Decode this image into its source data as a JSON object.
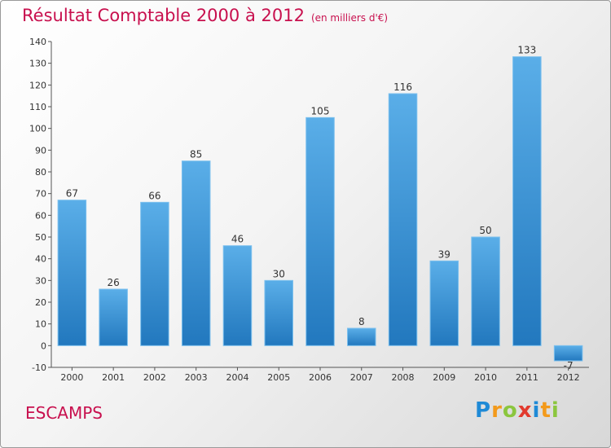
{
  "header": {
    "title": "Résultat Comptable 2000 à 2012",
    "subtitle": "(en milliers d'€)"
  },
  "footer": {
    "commune": "ESCAMPS",
    "logo_letters": [
      {
        "char": "P",
        "color": "#1f8ad6"
      },
      {
        "char": "r",
        "color": "#f39a1b"
      },
      {
        "char": "o",
        "color": "#8bc63e"
      },
      {
        "char": "x",
        "color": "#e23a2e"
      },
      {
        "char": "i",
        "color": "#1f8ad6"
      },
      {
        "char": "t",
        "color": "#f39a1b"
      },
      {
        "char": "i",
        "color": "#8bc63e"
      }
    ]
  },
  "chart_data": {
    "type": "bar",
    "title": "Résultat Comptable 2000 à 2012",
    "subtitle": "(en milliers d'€)",
    "categories": [
      "2000",
      "2001",
      "2002",
      "2003",
      "2004",
      "2005",
      "2006",
      "2007",
      "2008",
      "2009",
      "2010",
      "2011",
      "2012"
    ],
    "values": [
      67,
      26,
      66,
      85,
      46,
      30,
      105,
      8,
      116,
      39,
      50,
      133,
      -7
    ],
    "value_labels": [
      "67",
      "26",
      "66",
      "85",
      "46",
      "30",
      "105",
      "8",
      "116",
      "39",
      "50",
      "133",
      "-7"
    ],
    "yticks": [
      "-10",
      "0",
      "10",
      "20",
      "30",
      "40",
      "50",
      "60",
      "70",
      "80",
      "90",
      "100",
      "110",
      "120",
      "130",
      "140"
    ],
    "ylim": [
      -10,
      140
    ],
    "grid": false,
    "bar_color": "#3a93d8"
  }
}
